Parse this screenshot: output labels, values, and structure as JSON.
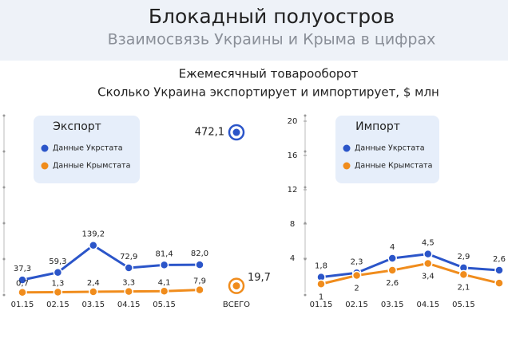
{
  "header": {
    "title": "Блокадный полуостров",
    "subtitle": "Взаимосвязь Украины и Крыма в цифрах"
  },
  "section": {
    "title": "Ежемесячный товарооборот",
    "subtitle": "Сколько Украина экспортирует и импортирует, $ млн"
  },
  "chart_data": [
    {
      "type": "line",
      "title": "Экспорт",
      "categories": [
        "01.15",
        "02.15",
        "03.15",
        "04.15",
        "05.15",
        null
      ],
      "ylim": [
        0,
        505
      ],
      "series": [
        {
          "name": "Данные Укрстата",
          "color": "#2b55c9",
          "values": [
            37.3,
            59.3,
            139.2,
            72.9,
            81.4,
            82.0
          ],
          "value_labels": [
            "37,3",
            "59,3",
            "139,2",
            "72,9",
            "81,4",
            "82,0"
          ]
        },
        {
          "name": "Данные Крымстата",
          "color": "#f08c1c",
          "values": [
            0.7,
            1.3,
            2.4,
            3.3,
            4.1,
            7.9
          ],
          "value_labels": [
            "0,7",
            "1,3",
            "2,4",
            "3,3",
            "4,1",
            "7,9"
          ]
        }
      ],
      "totals": {
        "label": "ВСЕГО",
        "values": [
          472.1,
          19.7
        ],
        "value_labels": [
          "472,1",
          "19,7"
        ]
      }
    },
    {
      "type": "line",
      "title": "Импорт",
      "categories": [
        "01.15",
        "02.15",
        "03.15",
        "04.15",
        "05.15",
        null
      ],
      "ylim": [
        0,
        20
      ],
      "yticks": [
        4,
        8,
        12,
        16,
        20
      ],
      "series": [
        {
          "name": "Данные Укрстата",
          "color": "#2b55c9",
          "values": [
            1.8,
            2.3,
            4,
            4.5,
            2.9,
            2.6
          ],
          "value_labels": [
            "1,8",
            "2,3",
            "4",
            "4,5",
            "2,9",
            "2,6"
          ]
        },
        {
          "name": "Данные Крымстата",
          "color": "#f08c1c",
          "values": [
            1,
            2,
            2.6,
            3.4,
            2.1,
            1.1
          ],
          "value_labels": [
            "1",
            "2",
            "2,6",
            "3,4",
            "2,1",
            null
          ]
        }
      ]
    }
  ]
}
